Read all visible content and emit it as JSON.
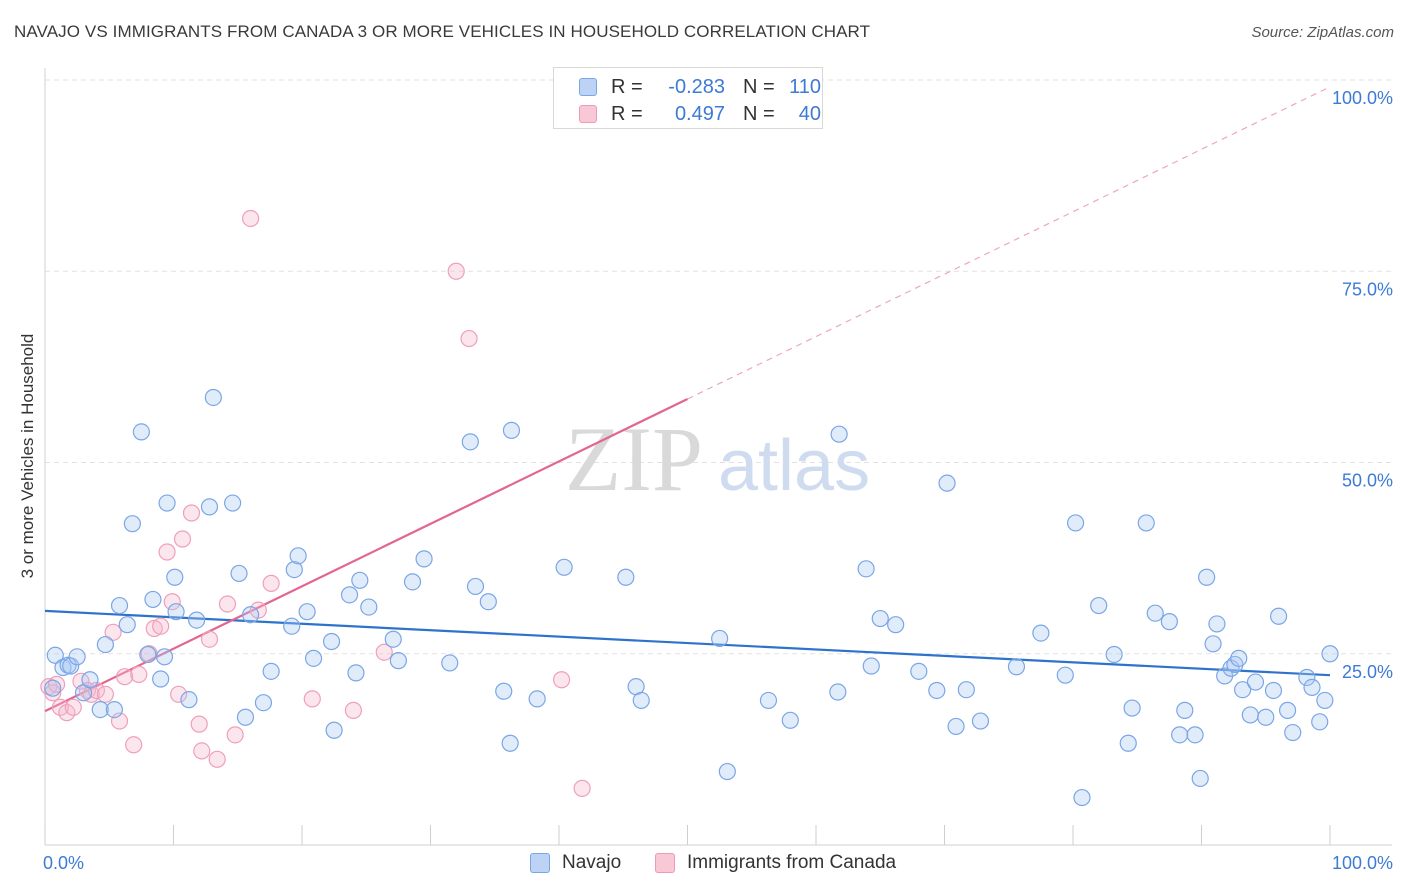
{
  "title": "NAVAJO VS IMMIGRANTS FROM CANADA 3 OR MORE VEHICLES IN HOUSEHOLD CORRELATION CHART",
  "source": "Source: ZipAtlas.com",
  "watermark": {
    "zip": "ZIP",
    "atlas": "atlas"
  },
  "legend": {
    "rows": [
      {
        "r_label": "R =",
        "r_value": "-0.283",
        "n_label": "N =",
        "n_value": "110"
      },
      {
        "r_label": "R =",
        "r_value": "0.497",
        "n_label": "N =",
        "n_value": "40"
      }
    ]
  },
  "chart_data": {
    "type": "scatter",
    "title": "NAVAJO VS IMMIGRANTS FROM CANADA 3 OR MORE VEHICLES IN HOUSEHOLD CORRELATION CHART",
    "xlabel": "",
    "ylabel": "3 or more Vehicles in Household",
    "xlim": [
      0,
      100
    ],
    "ylim": [
      0,
      100
    ],
    "x_tick_labels": [
      "0.0%",
      "100.0%"
    ],
    "y_tick_labels": [
      "100.0%",
      "75.0%",
      "50.0%",
      "25.0%"
    ],
    "y_tick_values": [
      100,
      75,
      50,
      25
    ],
    "grid": "horizontal dashed",
    "legend_position": "top-center and bottom",
    "colors": {
      "navajo": "#6fa0e6",
      "canada": "#f09ab5",
      "navajo_line": "#2f72cc",
      "canada_line": "#e2668f"
    },
    "series": [
      {
        "name": "Navajo",
        "trend": {
          "x": [
            0,
            100
          ],
          "y": [
            30.6,
            22.2
          ]
        },
        "points": [
          [
            0.6,
            20.5
          ],
          [
            0.8,
            24.8
          ],
          [
            1.4,
            23.2
          ],
          [
            1.8,
            23.5
          ],
          [
            2.0,
            23.4
          ],
          [
            2.5,
            24.6
          ],
          [
            3.0,
            19.9
          ],
          [
            3.5,
            21.6
          ],
          [
            4.3,
            17.7
          ],
          [
            4.7,
            26.2
          ],
          [
            5.4,
            17.7
          ],
          [
            5.8,
            31.3
          ],
          [
            6.4,
            28.8
          ],
          [
            6.8,
            42.0
          ],
          [
            7.5,
            54.0
          ],
          [
            8.0,
            24.9
          ],
          [
            8.4,
            32.1
          ],
          [
            9.0,
            21.7
          ],
          [
            9.3,
            24.6
          ],
          [
            9.5,
            44.7
          ],
          [
            10.1,
            35.0
          ],
          [
            10.2,
            30.5
          ],
          [
            11.2,
            19.0
          ],
          [
            11.8,
            29.4
          ],
          [
            12.8,
            44.2
          ],
          [
            13.1,
            58.5
          ],
          [
            14.6,
            44.7
          ],
          [
            15.1,
            35.5
          ],
          [
            15.6,
            16.7
          ],
          [
            16.0,
            30.1
          ],
          [
            17.0,
            18.6
          ],
          [
            17.6,
            22.7
          ],
          [
            19.2,
            28.6
          ],
          [
            19.4,
            36.0
          ],
          [
            19.7,
            37.8
          ],
          [
            20.4,
            30.5
          ],
          [
            20.9,
            24.4
          ],
          [
            22.3,
            26.6
          ],
          [
            22.5,
            15.0
          ],
          [
            23.7,
            32.7
          ],
          [
            24.2,
            22.5
          ],
          [
            24.5,
            34.6
          ],
          [
            25.2,
            31.1
          ],
          [
            27.1,
            26.9
          ],
          [
            27.5,
            24.1
          ],
          [
            28.6,
            34.4
          ],
          [
            29.5,
            37.4
          ],
          [
            31.5,
            23.8
          ],
          [
            33.1,
            52.7
          ],
          [
            33.5,
            33.8
          ],
          [
            34.5,
            31.8
          ],
          [
            35.7,
            20.1
          ],
          [
            36.2,
            13.3
          ],
          [
            36.3,
            54.2
          ],
          [
            38.3,
            19.1
          ],
          [
            40.4,
            36.3
          ],
          [
            45.2,
            35.0
          ],
          [
            46.0,
            20.7
          ],
          [
            46.4,
            18.9
          ],
          [
            52.5,
            27.0
          ],
          [
            53.1,
            9.6
          ],
          [
            56.3,
            18.9
          ],
          [
            58.0,
            16.3
          ],
          [
            61.7,
            20.0
          ],
          [
            61.8,
            53.7
          ],
          [
            63.9,
            36.1
          ],
          [
            64.3,
            23.4
          ],
          [
            65.0,
            29.6
          ],
          [
            66.2,
            28.8
          ],
          [
            68.0,
            22.7
          ],
          [
            69.4,
            20.2
          ],
          [
            70.2,
            47.3
          ],
          [
            70.9,
            15.5
          ],
          [
            71.7,
            20.3
          ],
          [
            72.8,
            16.2
          ],
          [
            75.6,
            23.3
          ],
          [
            77.5,
            27.7
          ],
          [
            79.4,
            22.2
          ],
          [
            80.2,
            42.1
          ],
          [
            80.7,
            6.2
          ],
          [
            82.0,
            31.3
          ],
          [
            83.2,
            24.9
          ],
          [
            84.3,
            13.3
          ],
          [
            84.6,
            17.9
          ],
          [
            85.7,
            42.1
          ],
          [
            86.4,
            30.3
          ],
          [
            87.5,
            29.2
          ],
          [
            88.3,
            14.4
          ],
          [
            88.7,
            17.6
          ],
          [
            89.5,
            14.4
          ],
          [
            89.9,
            8.7
          ],
          [
            90.4,
            35.0
          ],
          [
            90.9,
            26.3
          ],
          [
            91.2,
            28.9
          ],
          [
            91.8,
            22.1
          ],
          [
            92.3,
            23.1
          ],
          [
            92.6,
            23.6
          ],
          [
            92.9,
            24.4
          ],
          [
            93.2,
            20.3
          ],
          [
            93.8,
            17.0
          ],
          [
            94.2,
            21.3
          ],
          [
            95.0,
            16.7
          ],
          [
            95.6,
            20.2
          ],
          [
            96.0,
            29.9
          ],
          [
            96.7,
            17.6
          ],
          [
            97.1,
            14.7
          ],
          [
            98.2,
            21.9
          ],
          [
            98.6,
            20.6
          ],
          [
            99.2,
            16.1
          ],
          [
            99.6,
            18.9
          ],
          [
            100.0,
            25.0
          ]
        ]
      },
      {
        "name": "Immigrants from Canada",
        "trend": {
          "x": [
            0,
            50
          ],
          "y": [
            17.5,
            58.3
          ]
        },
        "trend_extension": {
          "x": [
            50,
            100
          ],
          "y": [
            58.3,
            99.1
          ]
        },
        "points": [
          [
            0.3,
            20.7
          ],
          [
            0.6,
            19.9
          ],
          [
            0.9,
            21.0
          ],
          [
            1.2,
            18.0
          ],
          [
            1.7,
            17.3
          ],
          [
            2.2,
            18.0
          ],
          [
            2.8,
            21.4
          ],
          [
            3.3,
            20.2
          ],
          [
            3.6,
            19.7
          ],
          [
            4.0,
            20.2
          ],
          [
            4.7,
            19.7
          ],
          [
            5.3,
            27.8
          ],
          [
            5.8,
            16.2
          ],
          [
            6.2,
            22.0
          ],
          [
            6.9,
            13.1
          ],
          [
            7.3,
            22.3
          ],
          [
            8.1,
            25.0
          ],
          [
            8.5,
            28.3
          ],
          [
            9.0,
            28.6
          ],
          [
            9.5,
            38.3
          ],
          [
            9.9,
            31.8
          ],
          [
            10.4,
            19.7
          ],
          [
            10.7,
            40.0
          ],
          [
            11.4,
            43.4
          ],
          [
            12.0,
            15.8
          ],
          [
            12.2,
            12.3
          ],
          [
            12.8,
            26.9
          ],
          [
            13.4,
            11.2
          ],
          [
            14.2,
            31.5
          ],
          [
            14.8,
            14.4
          ],
          [
            16.0,
            81.9
          ],
          [
            16.6,
            30.7
          ],
          [
            17.6,
            34.2
          ],
          [
            20.8,
            19.1
          ],
          [
            24.0,
            17.6
          ],
          [
            26.4,
            25.2
          ],
          [
            32.0,
            75.0
          ],
          [
            33.0,
            66.2
          ],
          [
            40.2,
            21.6
          ],
          [
            41.8,
            7.4
          ]
        ]
      }
    ]
  }
}
